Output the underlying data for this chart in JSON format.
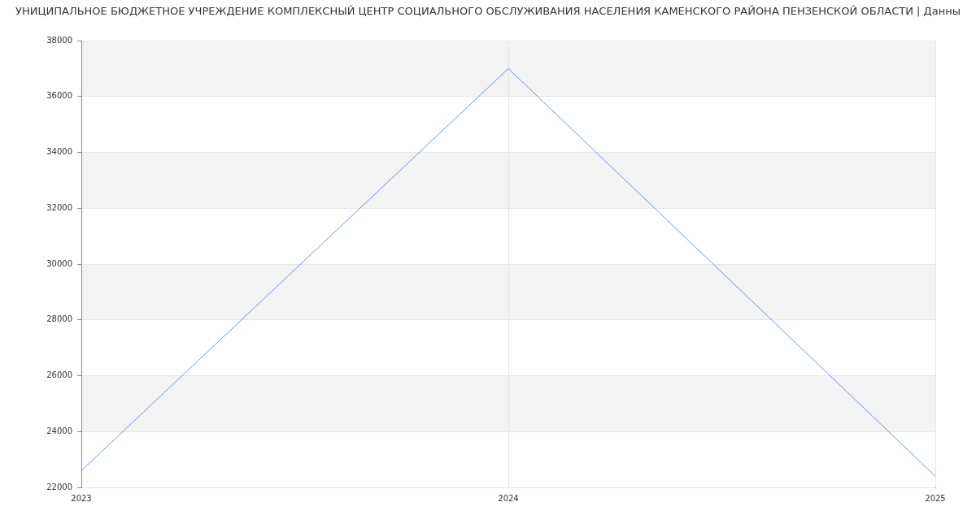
{
  "chart_data": {
    "type": "line",
    "title": "УНИЦИПАЛЬНОЕ БЮДЖЕТНОЕ УЧРЕЖДЕНИЕ КОМПЛЕКСНЫЙ ЦЕНТР СОЦИАЛЬНОГО ОБСЛУЖИВАНИЯ НАСЕЛЕНИЯ КАМЕНСКОГО РАЙОНА ПЕНЗЕНСКОЙ ОБЛАСТИ | Данны",
    "categories": [
      "2023",
      "2024",
      "2025"
    ],
    "series": [
      {
        "color": "#6495ed",
        "values": [
          22600,
          37000,
          22400
        ]
      }
    ],
    "ylim": [
      22000,
      38000
    ],
    "yticks": [
      22000,
      24000,
      26000,
      28000,
      30000,
      32000,
      34000,
      36000,
      38000
    ],
    "grid": true,
    "marker": "none"
  }
}
